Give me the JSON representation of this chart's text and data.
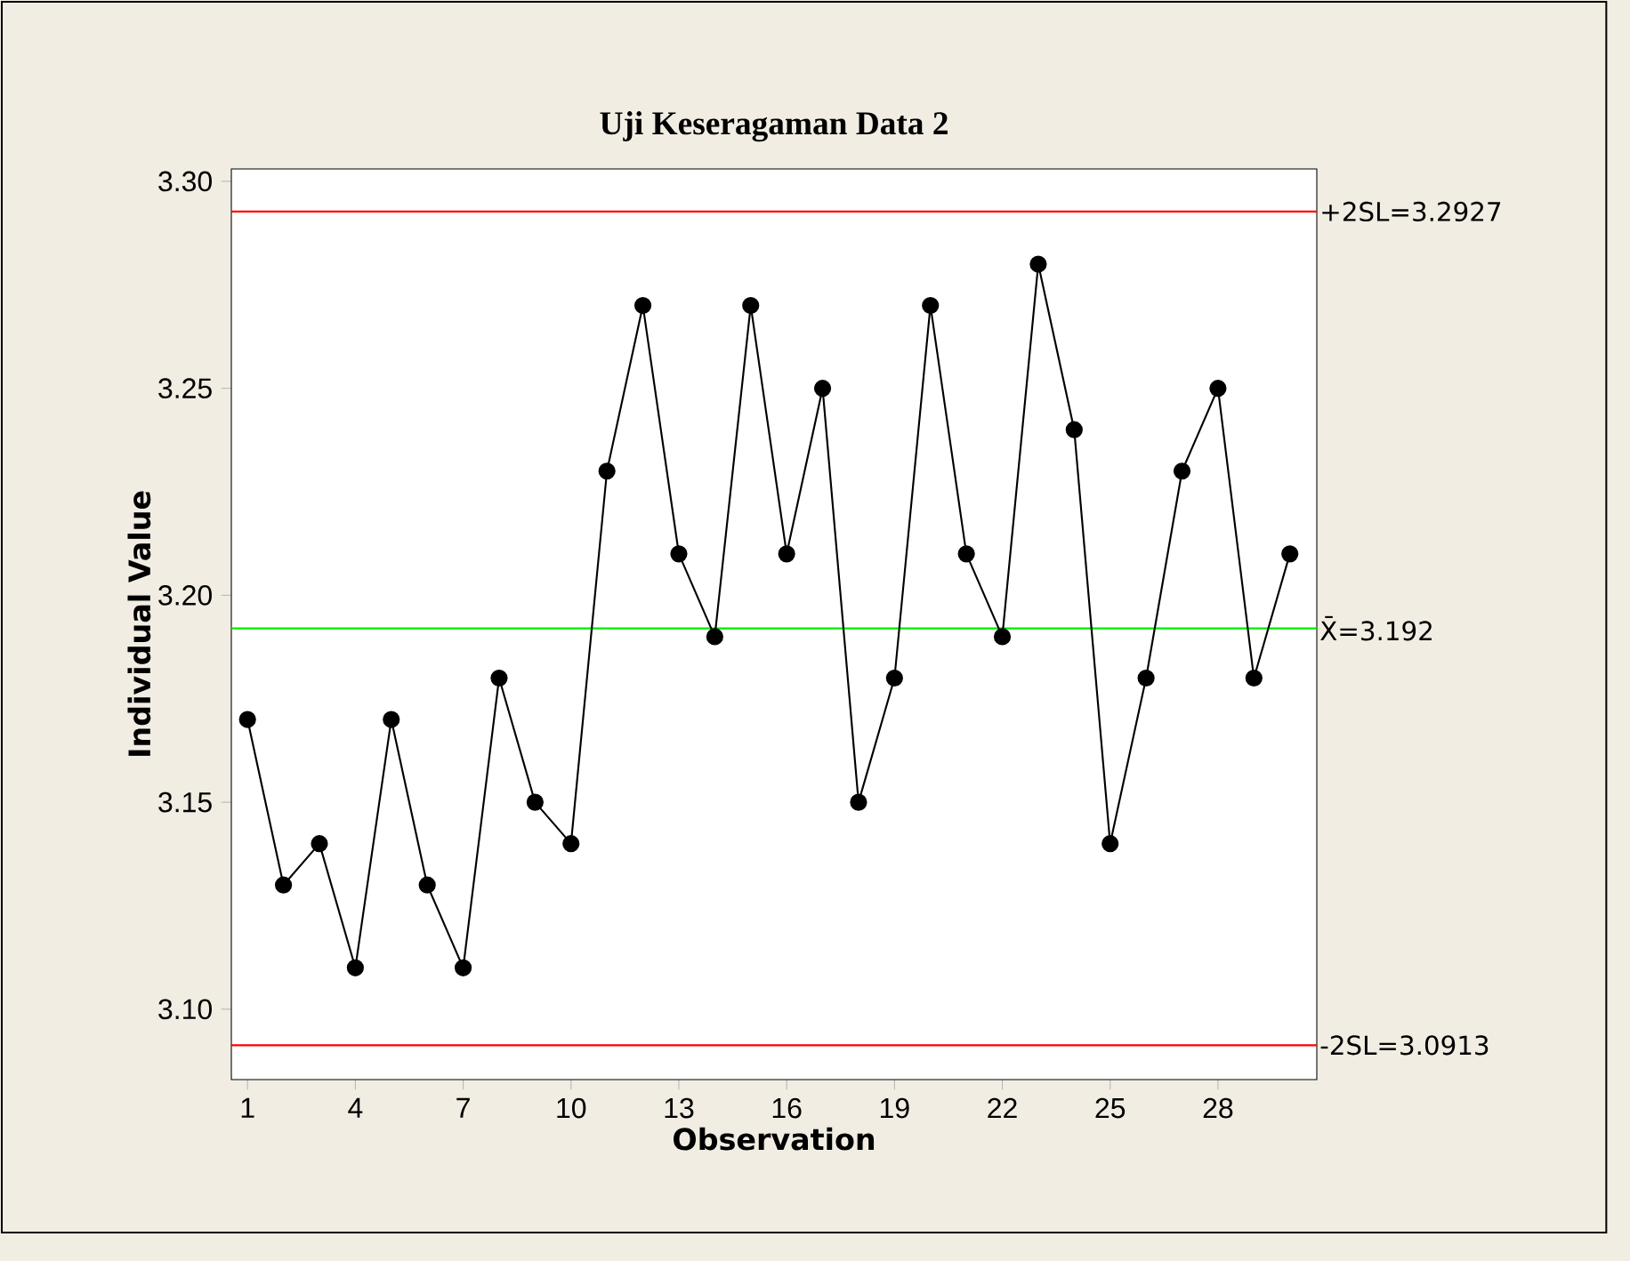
{
  "chart_data": {
    "type": "line",
    "title": "Uji Keseragaman Data 2",
    "xlabel": "Observation",
    "ylabel": "Individual Value",
    "x": [
      1,
      2,
      3,
      4,
      5,
      6,
      7,
      8,
      9,
      10,
      11,
      12,
      13,
      14,
      15,
      16,
      17,
      18,
      19,
      20,
      21,
      22,
      23,
      24,
      25,
      26,
      27,
      28,
      29,
      30
    ],
    "series": [
      {
        "color": "#000000",
        "values": [
          3.17,
          3.13,
          3.14,
          3.11,
          3.17,
          3.13,
          3.11,
          3.18,
          3.15,
          3.14,
          3.23,
          3.27,
          3.21,
          3.19,
          3.27,
          3.21,
          3.25,
          3.15,
          3.18,
          3.27,
          3.21,
          3.19,
          3.28,
          3.24,
          3.14,
          3.18,
          3.23,
          3.25,
          3.18,
          3.21
        ]
      }
    ],
    "xlim": [
      0.55,
      30.75
    ],
    "ylim": [
      3.083,
      3.303
    ],
    "xticks": [
      1,
      4,
      7,
      10,
      13,
      16,
      19,
      22,
      25,
      28
    ],
    "yticks": [
      {
        "value": 3.1,
        "label": "3.10"
      },
      {
        "value": 3.15,
        "label": "3.15"
      },
      {
        "value": 3.2,
        "label": "3.20"
      },
      {
        "value": 3.25,
        "label": "3.25"
      },
      {
        "value": 3.3,
        "label": "3.30"
      }
    ],
    "ref_lines": [
      {
        "axis": "y",
        "value": 3.2927,
        "label": "+2SL=3.2927",
        "color": "#ff0000"
      },
      {
        "axis": "y",
        "value": 3.192,
        "label": "X̄=3.192",
        "color": "#00ee00"
      },
      {
        "axis": "y",
        "value": 3.0913,
        "label": "-2SL=3.0913",
        "color": "#ff0000"
      }
    ],
    "marker": "circle",
    "line_style": "solid"
  }
}
